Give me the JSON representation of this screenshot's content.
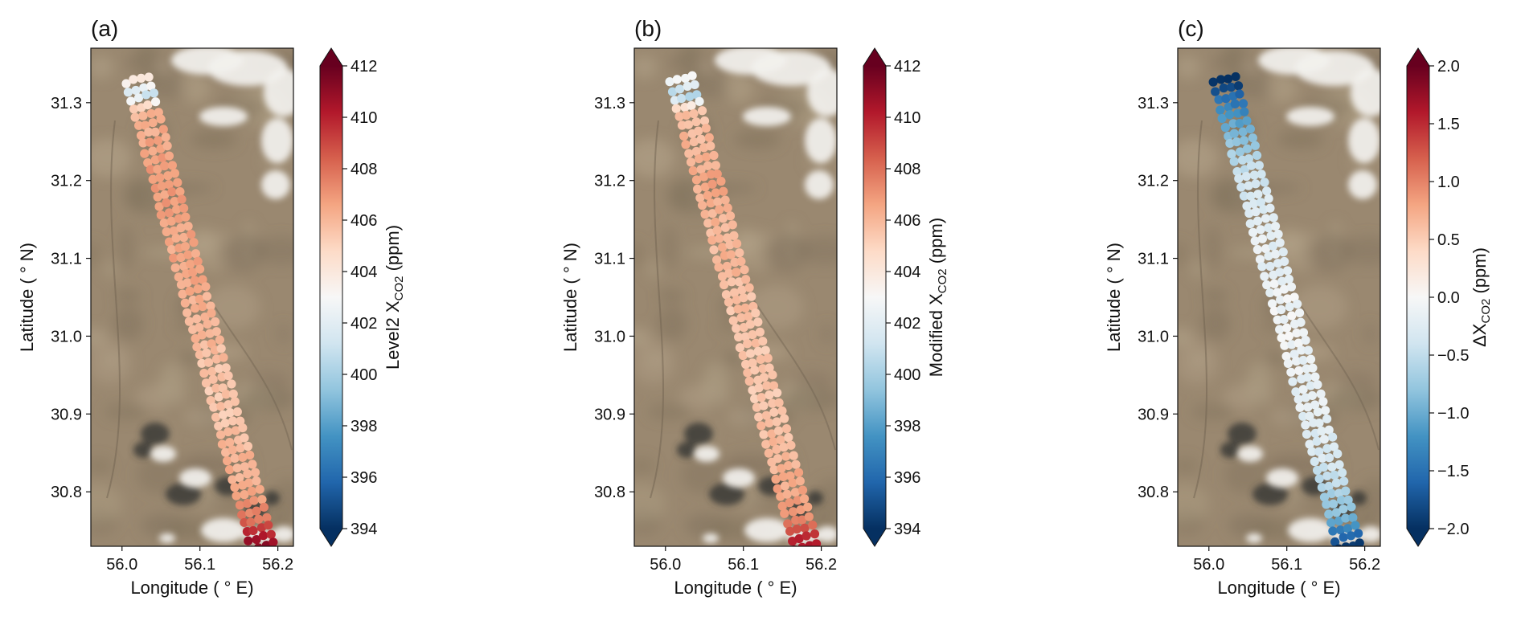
{
  "x_axis_label": "Longitude ( ° E)",
  "y_axis_label": "Latitude ( ° N)",
  "colors": {
    "terrain_base": "#9a8870",
    "cloud": "#f2f1ee",
    "shadow": "#3b3a36",
    "cmap": [
      "#053061",
      "#2166ac",
      "#4393c3",
      "#92c5de",
      "#d1e5f0",
      "#f7f7f7",
      "#fddbc7",
      "#f4a582",
      "#d6604d",
      "#b2182b",
      "#67001f"
    ]
  },
  "chart_data": [
    {
      "type": "scatter",
      "panel_label": "(a)",
      "colorbar_label": "Level2 X",
      "colorbar_sub": "CO2",
      "colorbar_unit": " (ppm)",
      "colorbar_range": [
        394,
        412
      ],
      "colorbar_ticks": [
        "394",
        "396",
        "398",
        "400",
        "402",
        "404",
        "406",
        "408",
        "410",
        "412"
      ],
      "xlim": [
        55.96,
        56.22
      ],
      "ylim": [
        30.73,
        31.37
      ],
      "x_ticks": [
        "56.0",
        "56.1",
        "56.2"
      ],
      "y_ticks": [
        "30.8",
        "30.9",
        "31.0",
        "31.1",
        "31.2",
        "31.3"
      ],
      "track": {
        "start": [
          56.02,
          31.33
        ],
        "end": [
          56.18,
          30.73
        ]
      },
      "profile": [
        [
          31.33,
          404.0
        ],
        [
          31.31,
          401.0
        ],
        [
          31.29,
          406.0
        ],
        [
          31.25,
          406.5
        ],
        [
          31.2,
          407.0
        ],
        [
          31.15,
          406.5
        ],
        [
          31.1,
          406.5
        ],
        [
          31.0,
          406.0
        ],
        [
          30.95,
          405.5
        ],
        [
          30.9,
          405.5
        ],
        [
          30.85,
          406.0
        ],
        [
          30.8,
          406.5
        ],
        [
          30.77,
          407.5
        ],
        [
          30.75,
          409.5
        ],
        [
          30.73,
          411.0
        ]
      ]
    },
    {
      "type": "scatter",
      "panel_label": "(b)",
      "colorbar_label": "Modified X",
      "colorbar_sub": "CO2",
      "colorbar_unit": " (ppm)",
      "colorbar_range": [
        394,
        412
      ],
      "colorbar_ticks": [
        "394",
        "396",
        "398",
        "400",
        "402",
        "404",
        "406",
        "408",
        "410",
        "412"
      ],
      "xlim": [
        55.96,
        56.22
      ],
      "ylim": [
        30.73,
        31.37
      ],
      "x_ticks": [
        "56.0",
        "56.1",
        "56.2"
      ],
      "y_ticks": [
        "30.8",
        "30.9",
        "31.0",
        "31.1",
        "31.2",
        "31.3"
      ],
      "track": {
        "start": [
          56.02,
          31.33
        ],
        "end": [
          56.18,
          30.73
        ]
      },
      "profile": [
        [
          31.33,
          403.0
        ],
        [
          31.31,
          400.0
        ],
        [
          31.29,
          405.5
        ],
        [
          31.25,
          406.0
        ],
        [
          31.2,
          406.5
        ],
        [
          31.15,
          406.0
        ],
        [
          31.1,
          406.0
        ],
        [
          31.0,
          405.5
        ],
        [
          30.95,
          405.5
        ],
        [
          30.9,
          405.5
        ],
        [
          30.85,
          406.0
        ],
        [
          30.8,
          406.5
        ],
        [
          30.77,
          407.0
        ],
        [
          30.75,
          409.0
        ],
        [
          30.73,
          410.5
        ]
      ]
    },
    {
      "type": "scatter",
      "panel_label": "(c)",
      "colorbar_label": "ΔX",
      "colorbar_sub": "CO2",
      "colorbar_unit": " (ppm)",
      "colorbar_range": [
        -2.0,
        2.0
      ],
      "colorbar_ticks": [
        "-2.0",
        "-1.5",
        "-1.0",
        "-0.5",
        "0.0",
        "0.5",
        "1.0",
        "1.5",
        "2.0"
      ],
      "xlim": [
        55.96,
        56.22
      ],
      "ylim": [
        30.73,
        31.37
      ],
      "x_ticks": [
        "56.0",
        "56.1",
        "56.2"
      ],
      "y_ticks": [
        "30.8",
        "30.9",
        "31.0",
        "31.1",
        "31.2",
        "31.3"
      ],
      "track": {
        "start": [
          56.02,
          31.33
        ],
        "end": [
          56.18,
          30.73
        ]
      },
      "profile": [
        [
          31.33,
          -2.0
        ],
        [
          31.3,
          -1.4
        ],
        [
          31.26,
          -0.9
        ],
        [
          31.22,
          -0.5
        ],
        [
          31.15,
          -0.2
        ],
        [
          31.1,
          -0.2
        ],
        [
          31.05,
          -0.1
        ],
        [
          31.0,
          -0.1
        ],
        [
          30.9,
          -0.2
        ],
        [
          30.85,
          -0.3
        ],
        [
          30.8,
          -0.6
        ],
        [
          30.77,
          -0.9
        ],
        [
          30.75,
          -1.4
        ],
        [
          30.73,
          -2.0
        ]
      ]
    }
  ]
}
